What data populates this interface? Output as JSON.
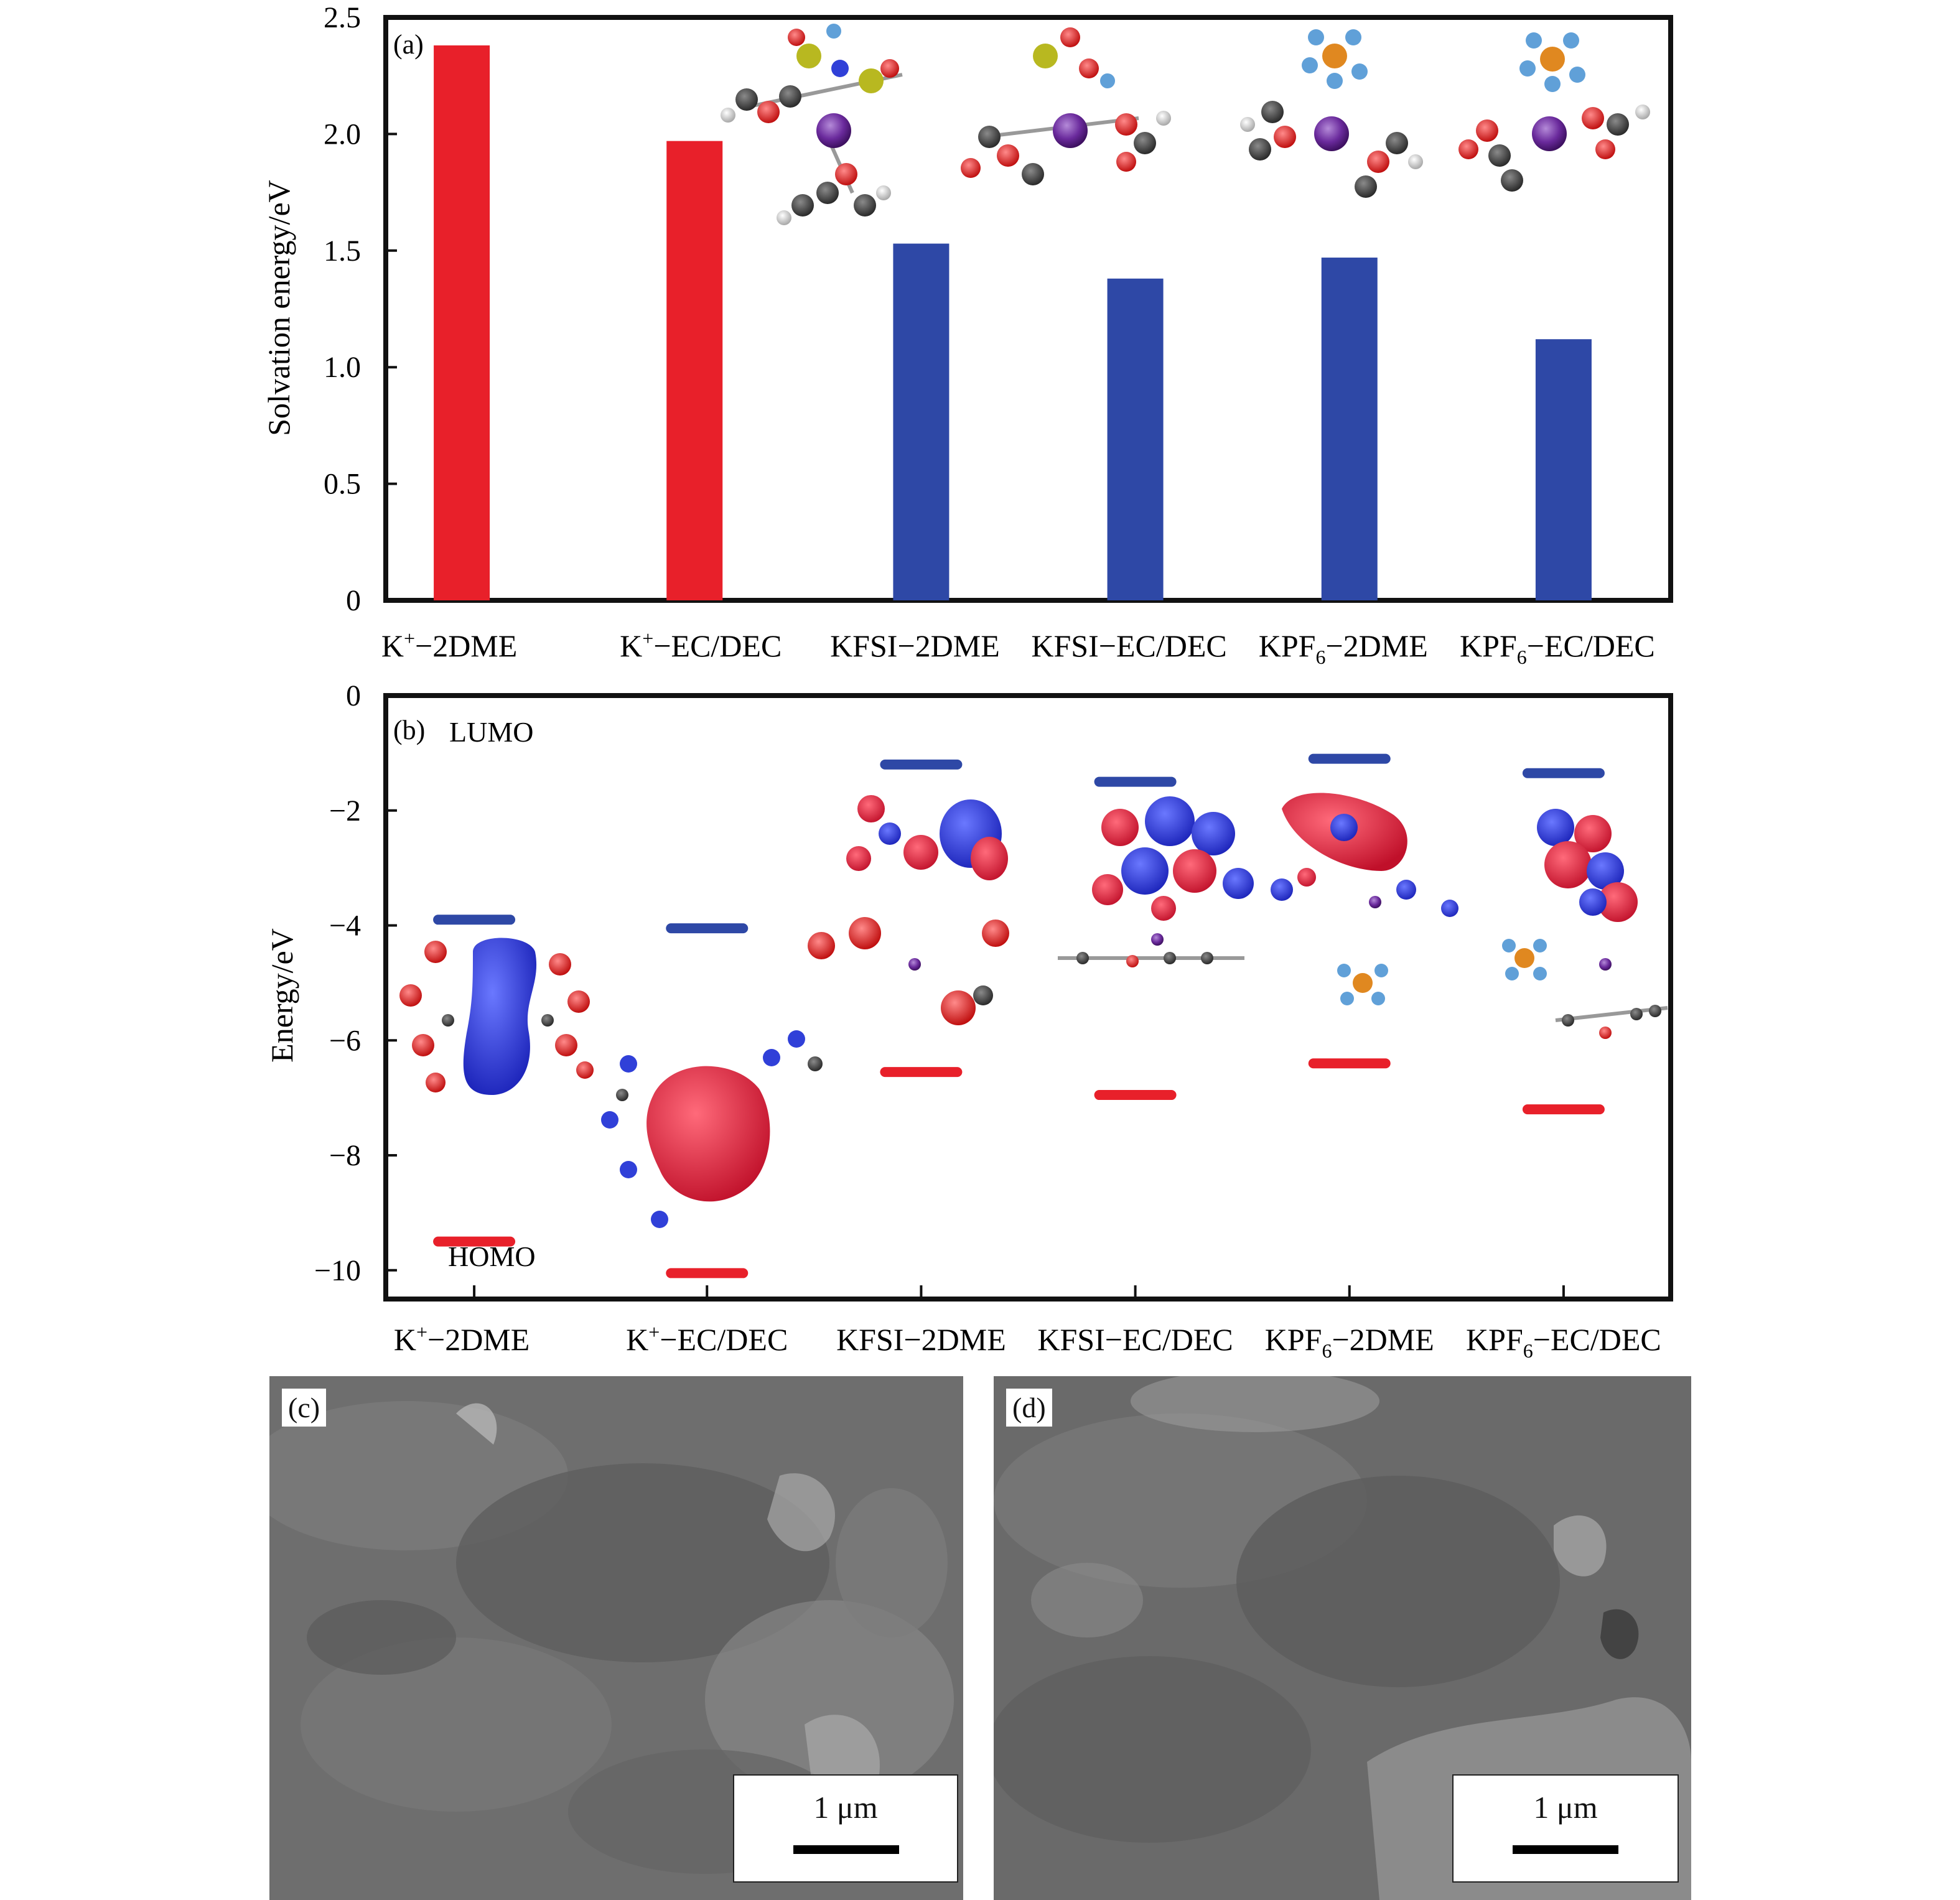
{
  "chart_data": [
    {
      "panel": "(a)",
      "type": "bar",
      "categories": [
        "K+−2DME",
        "K+−EC/DEC",
        "KFSI−2DME",
        "KFSI−EC/DEC",
        "KPF6−2DME",
        "KPF6−EC/DEC"
      ],
      "category_display": [
        {
          "base": "K",
          "sup": "+",
          "sub": "",
          "rest": "−2DME"
        },
        {
          "base": "K",
          "sup": "+",
          "sub": "",
          "rest": "−EC/DEC"
        },
        {
          "base": "KFSI",
          "sup": "",
          "sub": "",
          "rest": "−2DME"
        },
        {
          "base": "KFSI",
          "sup": "",
          "sub": "",
          "rest": "−EC/DEC"
        },
        {
          "base": "KPF",
          "sup": "",
          "sub": "6",
          "rest": "−2DME"
        },
        {
          "base": "KPF",
          "sup": "",
          "sub": "6",
          "rest": "−EC/DEC"
        }
      ],
      "values": [
        2.38,
        1.97,
        1.53,
        1.38,
        1.47,
        1.12
      ],
      "bar_colors": [
        "#e8202a",
        "#e8202a",
        "#2e48a6",
        "#2e48a6",
        "#2e48a6",
        "#2e48a6"
      ],
      "ylabel": "Solvation energy/eV",
      "ylim": [
        0,
        2.5
      ],
      "yticks": [
        0,
        0.5,
        1.0,
        1.5,
        2.0,
        2.5
      ],
      "ytick_labels": [
        "0",
        "0.5",
        "1.0",
        "1.5",
        "2.0",
        "2.5"
      ],
      "grid": false
    },
    {
      "panel": "(b)",
      "type": "scatter",
      "categories": [
        "K+−2DME",
        "K+−EC/DEC",
        "KFSI−2DME",
        "KFSI−EC/DEC",
        "KPF6−2DME",
        "KPF6−EC/DEC"
      ],
      "series": [
        {
          "name": "LUMO",
          "values": [
            -3.9,
            -4.05,
            -1.2,
            -1.5,
            -1.1,
            -1.35
          ],
          "color": "#2e48a6"
        },
        {
          "name": "HOMO",
          "values": [
            -9.5,
            -10.05,
            -6.55,
            -6.95,
            -6.4,
            -7.2
          ],
          "color": "#e8202a"
        }
      ],
      "ylabel": "Energy/eV",
      "ylim": [
        -10.5,
        0
      ],
      "yticks": [
        0,
        -2,
        -4,
        -6,
        -8,
        -10
      ],
      "ytick_labels": [
        "0",
        "−2",
        "−4",
        "−6",
        "−8",
        "−10"
      ],
      "annotations": [
        "LUMO",
        "HOMO"
      ],
      "grid": false
    }
  ],
  "sem_panels": [
    {
      "label": "(c)",
      "scale": "1 μm"
    },
    {
      "label": "(d)",
      "scale": "1 μm"
    }
  ]
}
